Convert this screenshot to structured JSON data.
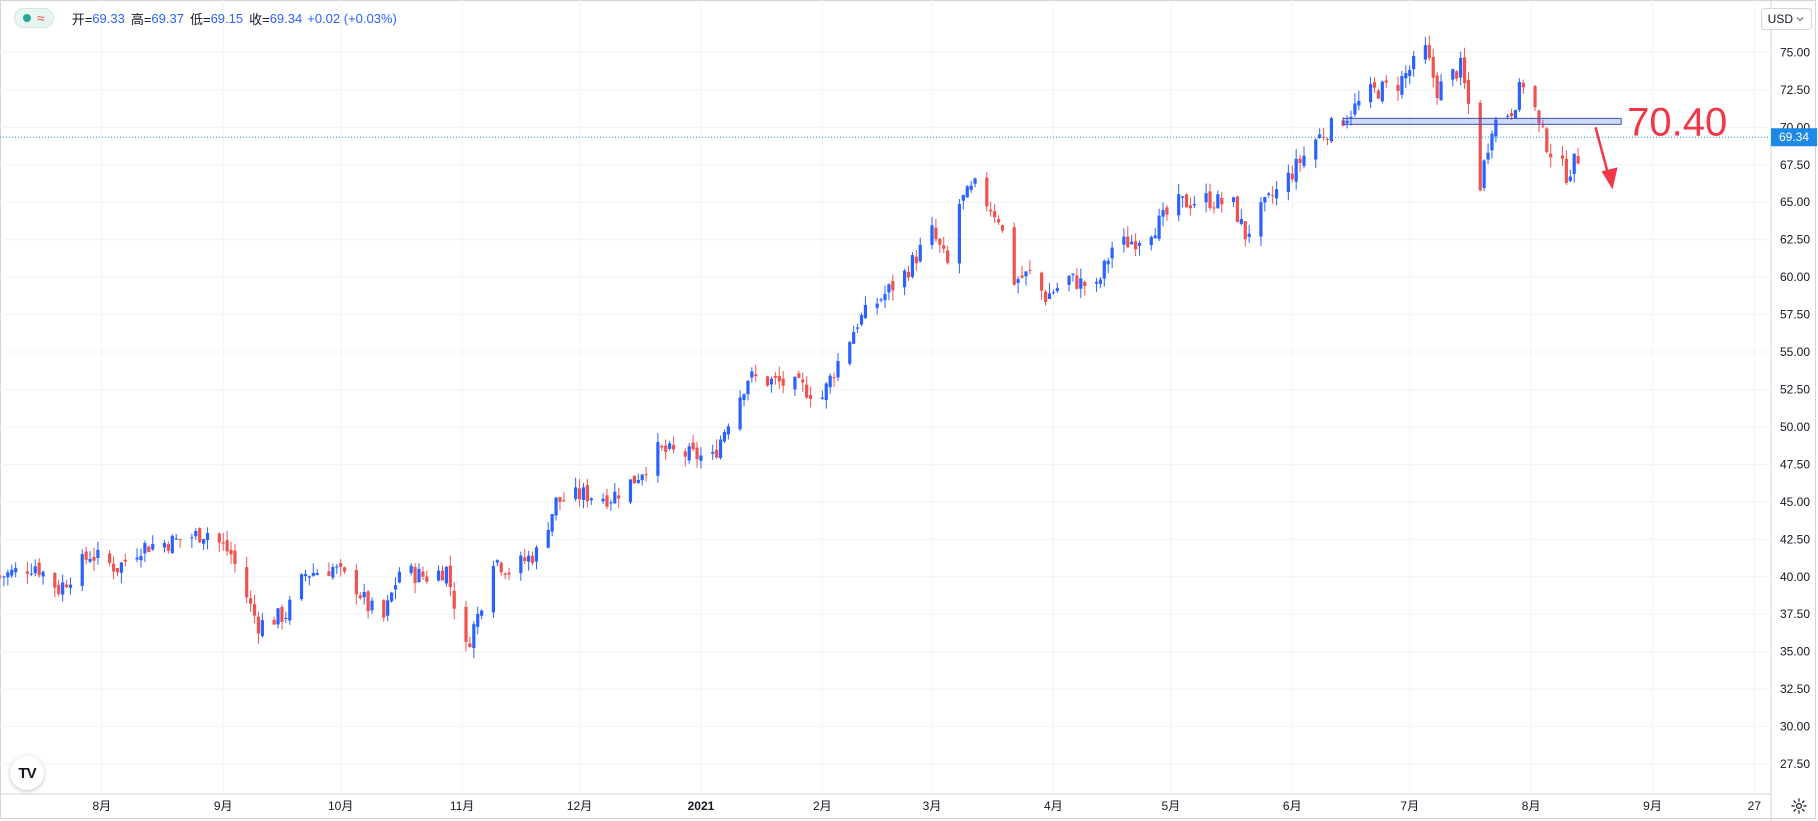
{
  "legend": {
    "open_label": "开=",
    "open_value": "69.33",
    "high_label": "高=",
    "high_value": "69.37",
    "low_label": "低=",
    "low_value": "69.15",
    "close_label": "收=",
    "close_value": "69.34",
    "change": "+0.02 (+0.03%)",
    "wave_symbol": "≈"
  },
  "currency_selector": "USD",
  "logo_text": "TV",
  "icons": {
    "settings": "gear-icon",
    "logo": "tradingview-logo-icon",
    "dropdown": "chevron-down-icon"
  },
  "colors": {
    "up": "#2962ff",
    "down": "#ef5350",
    "price_line": "#2196f3",
    "annotation": "#f23645",
    "grid": "#f0f3fa"
  },
  "chart_data": {
    "type": "candlestick",
    "title": "",
    "xlabel": "",
    "ylabel": "",
    "ylim": [
      25.5,
      78.5
    ],
    "y_ticks": [
      "27.50",
      "30.00",
      "32.50",
      "35.00",
      "37.50",
      "40.00",
      "42.50",
      "45.00",
      "47.50",
      "50.00",
      "52.50",
      "55.00",
      "57.50",
      "60.00",
      "62.50",
      "65.00",
      "67.50",
      "70.00",
      "72.50",
      "75.00"
    ],
    "x_ticks": [
      "8月",
      "9月",
      "10月",
      "11月",
      "12月",
      "2021",
      "2月",
      "3月",
      "4月",
      "5月",
      "6月",
      "7月",
      "8月",
      "9月",
      "27"
    ],
    "x_tick_dates": [
      "2020-08-01",
      "2020-09-01",
      "2020-10-01",
      "2020-11-01",
      "2020-12-01",
      "2021-01-01",
      "2021-02-01",
      "2021-03-01",
      "2021-04-01",
      "2021-05-01",
      "2021-06-01",
      "2021-07-01",
      "2021-08-01",
      "2021-09-01",
      "2021-09-27"
    ],
    "xlim": [
      "2020-07-06",
      "2021-10-01"
    ],
    "last_price": 69.34,
    "last_price_label": "69.34",
    "key_level": 70.4,
    "key_level_label": "70.40",
    "annotation_arrow": "down",
    "grid": true,
    "price_path": [
      [
        "2020-07-06",
        40.0
      ],
      [
        "2020-07-15",
        40.8
      ],
      [
        "2020-07-21",
        39.2
      ],
      [
        "2020-07-29",
        41.5
      ],
      [
        "2020-08-05",
        40.6
      ],
      [
        "2020-08-11",
        42.0
      ],
      [
        "2020-08-20",
        42.4
      ],
      [
        "2020-08-28",
        43.0
      ],
      [
        "2020-09-03",
        41.5
      ],
      [
        "2020-09-08",
        38.0
      ],
      [
        "2020-09-10",
        36.8
      ],
      [
        "2020-09-17",
        37.5
      ],
      [
        "2020-09-22",
        40.2
      ],
      [
        "2020-09-29",
        40.6
      ],
      [
        "2020-10-05",
        39.3
      ],
      [
        "2020-10-08",
        38.0
      ],
      [
        "2020-10-12",
        37.2
      ],
      [
        "2020-10-16",
        40.4
      ],
      [
        "2020-10-23",
        40.0
      ],
      [
        "2020-10-28",
        40.5
      ],
      [
        "2020-10-30",
        38.3
      ],
      [
        "2020-11-02",
        35.2
      ],
      [
        "2020-11-05",
        37.4
      ],
      [
        "2020-11-09",
        41.3
      ],
      [
        "2020-11-13",
        40.4
      ],
      [
        "2020-11-20",
        41.6
      ],
      [
        "2020-11-25",
        45.0
      ],
      [
        "2020-12-02",
        45.5
      ],
      [
        "2020-12-09",
        45.3
      ],
      [
        "2020-12-15",
        46.5
      ],
      [
        "2020-12-21",
        48.4
      ],
      [
        "2020-12-27",
        48.2
      ],
      [
        "2021-01-04",
        47.9
      ],
      [
        "2021-01-08",
        50.5
      ],
      [
        "2021-01-13",
        53.3
      ],
      [
        "2021-01-20",
        53.0
      ],
      [
        "2021-01-27",
        52.6
      ],
      [
        "2021-02-01",
        52.0
      ],
      [
        "2021-02-04",
        53.8
      ],
      [
        "2021-02-10",
        57.0
      ],
      [
        "2021-02-16",
        58.6
      ],
      [
        "2021-02-22",
        60.2
      ],
      [
        "2021-03-01",
        63.0
      ],
      [
        "2021-03-05",
        60.8
      ],
      [
        "2021-03-08",
        64.9
      ],
      [
        "2021-03-12",
        66.0
      ],
      [
        "2021-03-18",
        64.0
      ],
      [
        "2021-03-22",
        59.8
      ],
      [
        "2021-03-26",
        60.2
      ],
      [
        "2021-03-30",
        58.7
      ],
      [
        "2021-04-05",
        59.9
      ],
      [
        "2021-04-12",
        59.2
      ],
      [
        "2021-04-16",
        62.0
      ],
      [
        "2021-04-22",
        62.5
      ],
      [
        "2021-04-28",
        63.6
      ],
      [
        "2021-05-03",
        64.9
      ],
      [
        "2021-05-10",
        65.2
      ],
      [
        "2021-05-17",
        64.8
      ],
      [
        "2021-05-20",
        62.8
      ],
      [
        "2021-05-24",
        64.4
      ],
      [
        "2021-06-01",
        67.0
      ],
      [
        "2021-06-07",
        69.2
      ],
      [
        "2021-06-14",
        70.6
      ],
      [
        "2021-06-21",
        72.3
      ],
      [
        "2021-06-28",
        72.9
      ],
      [
        "2021-07-05",
        75.1
      ],
      [
        "2021-07-08",
        72.5
      ],
      [
        "2021-07-14",
        74.0
      ],
      [
        "2021-07-16",
        71.5
      ],
      [
        "2021-07-19",
        66.2
      ],
      [
        "2021-07-22",
        70.2
      ],
      [
        "2021-07-27",
        71.2
      ],
      [
        "2021-07-31",
        73.6
      ],
      [
        "2021-08-03",
        70.0
      ],
      [
        "2021-08-06",
        68.4
      ],
      [
        "2021-08-10",
        66.9
      ],
      [
        "2021-08-13",
        68.0
      ],
      [
        "2021-08-14",
        69.34
      ]
    ]
  }
}
